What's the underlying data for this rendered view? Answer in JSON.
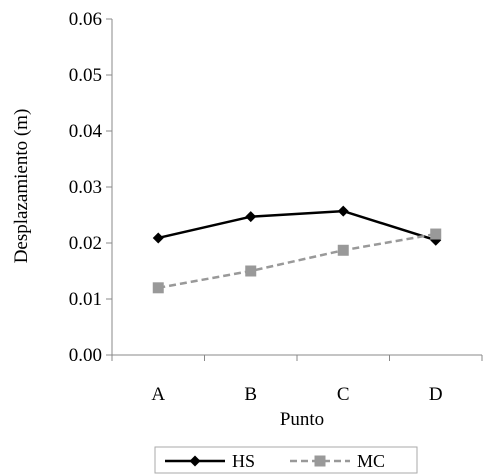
{
  "chart_data": {
    "type": "line",
    "title": "",
    "xlabel": "Punto",
    "ylabel": "Desplazamiento (m)",
    "categories": [
      "A",
      "B",
      "C",
      "D"
    ],
    "ylim": [
      0,
      0.06
    ],
    "yticks": [
      "0.00",
      "0.01",
      "0.02",
      "0.03",
      "0.04",
      "0.05",
      "0.06"
    ],
    "grid": false,
    "legend_position": "bottom",
    "series": [
      {
        "name": "HS",
        "values": [
          0.0209,
          0.0247,
          0.0257,
          0.0205
        ],
        "color": "#000000",
        "marker": "diamond",
        "line_style": "solid"
      },
      {
        "name": "MC",
        "values": [
          0.012,
          0.015,
          0.0187,
          0.0216
        ],
        "color": "#999999",
        "marker": "square",
        "line_style": "dashed"
      }
    ]
  }
}
